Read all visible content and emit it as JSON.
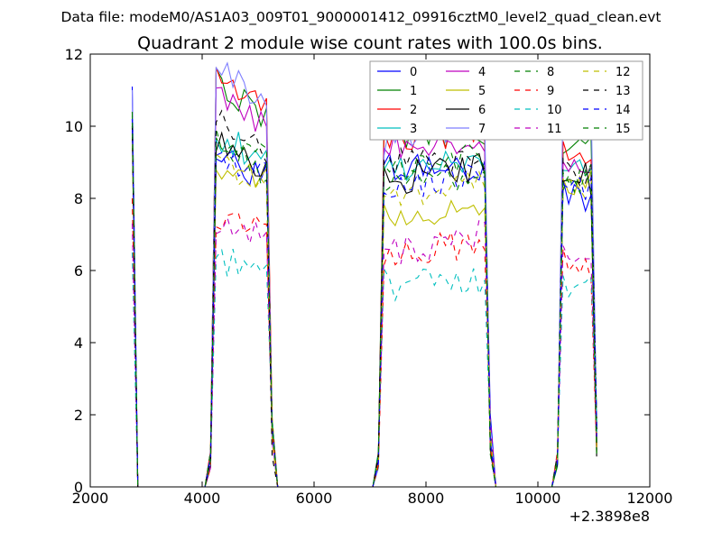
{
  "chart_data": {
    "type": "line",
    "supertitle": "Data file: modeM0/AS1A03_009T01_9000001412_09916cztM0_level2_quad_clean.evt",
    "title": "Quadrant 2 module wise count rates with 100.0s bins.",
    "xlabel": "",
    "ylabel": "",
    "x_offset_label": "+2.3898e8",
    "xlim": [
      2000,
      12000
    ],
    "ylim": [
      0,
      12
    ],
    "xticks": [
      "2000",
      "4000",
      "6000",
      "8000",
      "10000",
      "12000"
    ],
    "yticks": [
      "0",
      "2",
      "4",
      "6",
      "8",
      "10",
      "12"
    ],
    "x_tick_values": [
      2000,
      4000,
      6000,
      8000,
      10000,
      12000
    ],
    "y_tick_values": [
      0,
      2,
      4,
      6,
      8,
      10,
      12
    ],
    "grid": false,
    "legend_position": "top-right",
    "legend_columns": 4,
    "series": [
      {
        "name": "0",
        "color": "#0000ff",
        "dash": "solid",
        "base": [
          11.1,
          9.2,
          8.6,
          8.9,
          8.6,
          8.3,
          8.0
        ]
      },
      {
        "name": "1",
        "color": "#008000",
        "dash": "solid",
        "base": [
          10.0,
          11.2,
          10.3,
          9.7,
          9.8,
          9.4,
          9.4
        ]
      },
      {
        "name": "2",
        "color": "#ff0000",
        "dash": "solid",
        "base": [
          10.4,
          11.2,
          10.4,
          9.8,
          9.7,
          9.3,
          9.2
        ]
      },
      {
        "name": "3",
        "color": "#00bfbf",
        "dash": "solid",
        "base": [
          10.2,
          9.5,
          9.3,
          8.8,
          8.9,
          9.1,
          9.0
        ]
      },
      {
        "name": "4",
        "color": "#bf00bf",
        "dash": "solid",
        "base": [
          10.2,
          11.0,
          10.1,
          9.6,
          9.4,
          9.1,
          9.0
        ]
      },
      {
        "name": "5",
        "color": "#bfbf00",
        "dash": "solid",
        "base": [
          9.8,
          9.0,
          8.4,
          7.5,
          7.9,
          8.5,
          8.4
        ]
      },
      {
        "name": "6",
        "color": "#000000",
        "dash": "solid",
        "base": [
          10.1,
          9.7,
          8.8,
          8.5,
          8.9,
          8.7,
          8.5
        ]
      },
      {
        "name": "7",
        "color": "#7f7fff",
        "dash": "solid",
        "base": [
          11.0,
          11.8,
          10.6,
          9.6,
          10.2,
          10.6,
          10.5
        ]
      },
      {
        "name": "8",
        "color": "#008000",
        "dash": "dashed",
        "base": [
          10.3,
          9.5,
          8.5,
          8.5,
          8.7,
          8.5,
          8.6
        ]
      },
      {
        "name": "9",
        "color": "#ff0000",
        "dash": "dashed",
        "base": [
          8.0,
          7.6,
          7.2,
          6.4,
          6.8,
          6.2,
          6.0
        ]
      },
      {
        "name": "10",
        "color": "#00bfbf",
        "dash": "dashed",
        "base": [
          6.5,
          6.4,
          5.8,
          5.6,
          5.7,
          5.7,
          5.5
        ]
      },
      {
        "name": "11",
        "color": "#bf00bf",
        "dash": "dashed",
        "base": [
          7.3,
          7.4,
          6.9,
          6.5,
          7.0,
          6.6,
          6.6
        ]
      },
      {
        "name": "12",
        "color": "#bfbf00",
        "dash": "dashed",
        "base": [
          9.6,
          9.0,
          8.4,
          8.0,
          8.3,
          8.4,
          8.3
        ]
      },
      {
        "name": "13",
        "color": "#000000",
        "dash": "dashed",
        "base": [
          10.0,
          10.2,
          9.4,
          8.9,
          9.1,
          8.8,
          8.7
        ]
      },
      {
        "name": "14",
        "color": "#0000ff",
        "dash": "dashed",
        "base": [
          10.2,
          9.0,
          8.7,
          8.3,
          8.7,
          8.5,
          8.3
        ]
      },
      {
        "name": "15",
        "color": "#008000",
        "dash": "dashed",
        "base": [
          10.4,
          9.7,
          9.2,
          8.6,
          9.2,
          8.6,
          8.6
        ]
      }
    ],
    "segments": [
      {
        "kind": "spike",
        "x": 2750
      },
      {
        "kind": "zero",
        "from": 2850,
        "to": 4050
      },
      {
        "kind": "block",
        "from": 4250,
        "to": 5150,
        "rampStart": 4150,
        "rampEnd": 5250,
        "baseIdx": [
          1,
          2
        ]
      },
      {
        "kind": "zero",
        "from": 5350,
        "to": 7050
      },
      {
        "kind": "block",
        "from": 7250,
        "to": 9050,
        "rampStart": 7150,
        "rampEnd": 9150,
        "baseIdx": [
          3,
          4
        ]
      },
      {
        "kind": "zero",
        "from": 9250,
        "to": 10250
      },
      {
        "kind": "block",
        "from": 10450,
        "to": 10950,
        "rampStart": 10350,
        "rampEnd": 11050,
        "baseIdx": [
          5,
          6
        ]
      }
    ]
  }
}
